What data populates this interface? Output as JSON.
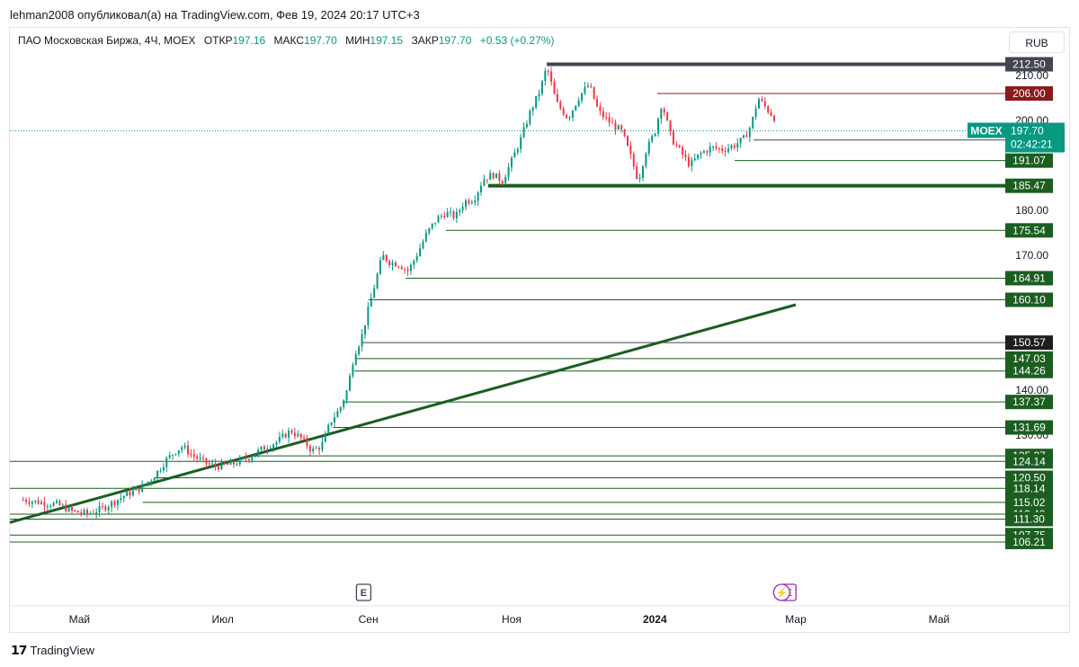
{
  "header": {
    "caption": "lehman2008 опубликовал(а) на TradingView.com, Фев 19, 2024 20:17 UTC+3"
  },
  "legend": {
    "symbol": "ПАО Московская Биржа, 4Ч, MOEX",
    "open_label": "ОТКР",
    "open": "197.16",
    "high_label": "МАКС",
    "high": "197.70",
    "low_label": "МИН",
    "low": "197.15",
    "close_label": "ЗАКР",
    "close": "197.70",
    "change": "+0.53 (+0.27%)"
  },
  "currency_button": "RUB",
  "footer": {
    "brand": "TradingView"
  },
  "chart_data": {
    "type": "candlestick",
    "symbol": "MOEX",
    "timeframe": "4Ч",
    "y_axis": {
      "min": 104,
      "max": 216,
      "ticks": [
        210,
        200,
        180,
        170,
        140,
        130
      ]
    },
    "x_axis": {
      "labels": [
        {
          "label": "Май",
          "date": "2023-05-01"
        },
        {
          "label": "Июл",
          "date": "2023-07-01"
        },
        {
          "label": "Сен",
          "date": "2023-09-01"
        },
        {
          "label": "Ноя",
          "date": "2023-11-01"
        },
        {
          "label": "2024",
          "date": "2024-01-01",
          "bold": true
        },
        {
          "label": "Мар",
          "date": "2024-03-01"
        },
        {
          "label": "Май",
          "date": "2024-05-01"
        }
      ]
    },
    "last_price": {
      "symbol": "MOEX",
      "value": "197.70",
      "countdown": "02:42:21",
      "color": "#089981"
    },
    "price_path": [
      [
        "2023-04-07",
        115.6
      ],
      [
        "2023-04-15",
        115.0
      ],
      [
        "2023-04-22",
        114.5
      ],
      [
        "2023-04-28",
        113.0
      ],
      [
        "2023-05-05",
        112.5
      ],
      [
        "2023-05-12",
        114.0
      ],
      [
        "2023-05-20",
        116.5
      ],
      [
        "2023-05-28",
        118.5
      ],
      [
        "2023-06-02",
        121.0
      ],
      [
        "2023-06-07",
        124.5
      ],
      [
        "2023-06-11",
        126.5
      ],
      [
        "2023-06-14",
        127.5
      ],
      [
        "2023-06-18",
        125.5
      ],
      [
        "2023-06-23",
        124.0
      ],
      [
        "2023-06-28",
        123.0
      ],
      [
        "2023-07-05",
        123.5
      ],
      [
        "2023-07-12",
        125.0
      ],
      [
        "2023-07-18",
        127.0
      ],
      [
        "2023-07-24",
        128.5
      ],
      [
        "2023-07-30",
        131.0
      ],
      [
        "2023-08-04",
        129.0
      ],
      [
        "2023-08-08",
        126.5
      ],
      [
        "2023-08-12",
        127.5
      ],
      [
        "2023-08-16",
        133.0
      ],
      [
        "2023-08-20",
        136.0
      ],
      [
        "2023-08-23",
        140.0
      ],
      [
        "2023-08-26",
        148.0
      ],
      [
        "2023-08-29",
        151.5
      ],
      [
        "2023-09-01",
        158.0
      ],
      [
        "2023-09-04",
        164.0
      ],
      [
        "2023-09-07",
        170.0
      ],
      [
        "2023-09-10",
        168.5
      ],
      [
        "2023-09-14",
        168.0
      ],
      [
        "2023-09-18",
        166.5
      ],
      [
        "2023-09-22",
        170.5
      ],
      [
        "2023-09-26",
        175.0
      ],
      [
        "2023-09-30",
        178.0
      ],
      [
        "2023-10-04",
        179.5
      ],
      [
        "2023-10-08",
        178.5
      ],
      [
        "2023-10-12",
        182.0
      ],
      [
        "2023-10-16",
        182.5
      ],
      [
        "2023-10-20",
        187.0
      ],
      [
        "2023-10-24",
        188.0
      ],
      [
        "2023-10-28",
        186.5
      ],
      [
        "2023-11-01",
        191.0
      ],
      [
        "2023-11-05",
        196.0
      ],
      [
        "2023-11-09",
        202.0
      ],
      [
        "2023-11-13",
        206.5
      ],
      [
        "2023-11-16",
        212.0
      ],
      [
        "2023-11-20",
        204.0
      ],
      [
        "2023-11-25",
        200.5
      ],
      [
        "2023-11-30",
        205.5
      ],
      [
        "2023-12-04",
        208.0
      ],
      [
        "2023-12-08",
        202.0
      ],
      [
        "2023-12-13",
        199.5
      ],
      [
        "2023-12-18",
        197.5
      ],
      [
        "2023-12-22",
        191.5
      ],
      [
        "2023-12-25",
        186.5
      ],
      [
        "2023-12-28",
        193.0
      ],
      [
        "2024-01-01",
        197.5
      ],
      [
        "2024-01-04",
        204.0
      ],
      [
        "2024-01-08",
        196.0
      ],
      [
        "2024-01-12",
        193.0
      ],
      [
        "2024-01-16",
        190.0
      ],
      [
        "2024-01-20",
        192.5
      ],
      [
        "2024-01-25",
        194.0
      ],
      [
        "2024-01-30",
        193.5
      ],
      [
        "2024-02-04",
        194.5
      ],
      [
        "2024-02-08",
        196.0
      ],
      [
        "2024-02-11",
        199.0
      ],
      [
        "2024-02-14",
        205.0
      ],
      [
        "2024-02-17",
        203.0
      ],
      [
        "2024-02-21",
        200.5
      ],
      [
        "2024-02-26",
        198.5
      ],
      [
        "2024-03-01",
        197.7
      ]
    ],
    "horizontal_levels": [
      {
        "value": 212.5,
        "label": "212.50",
        "start": "2023-11-16",
        "color": "#434651",
        "width": 4,
        "label_bg": "#434651"
      },
      {
        "value": 206.0,
        "label": "206.00",
        "start": "2024-01-02",
        "color": "#8b1a1a",
        "width": 1,
        "label_bg": "#8b1a1a"
      },
      {
        "value": 195.66,
        "label": "195.66",
        "start": "2024-02-12",
        "color": "#434651",
        "width": 1,
        "label_bg": "#1e1e1e"
      },
      {
        "value": 191.07,
        "label": "191.07",
        "start": "2024-02-04",
        "color": "#1b5e20",
        "width": 1,
        "label_bg": "#1b5e20"
      },
      {
        "value": 185.47,
        "label": "185.47",
        "start": "2023-10-22",
        "color": "#1b5e20",
        "width": 4,
        "label_bg": "#1b5e20"
      },
      {
        "value": 175.54,
        "label": "175.54",
        "start": "2023-10-04",
        "color": "#1b5e20",
        "width": 1,
        "label_bg": "#1b5e20"
      },
      {
        "value": 164.91,
        "label": "164.91",
        "start": "2023-09-17",
        "color": "#1b5e20",
        "width": 1,
        "label_bg": "#1b5e20"
      },
      {
        "value": 160.1,
        "label": "160.10",
        "start": "2023-09-01",
        "color": "#1b5e20",
        "width": 1,
        "label_bg": "#1b5e20"
      },
      {
        "value": 150.57,
        "label": "150.57",
        "start": "2023-08-29",
        "color": "#434651",
        "width": 1,
        "label_bg": "#1e1e1e"
      },
      {
        "value": 147.03,
        "label": "147.03",
        "start": "2023-08-27",
        "color": "#1b5e20",
        "width": 1,
        "label_bg": "#1b5e20"
      },
      {
        "value": 144.26,
        "label": "144.26",
        "start": "2023-08-26",
        "color": "#1b5e20",
        "width": 1,
        "label_bg": "#1b5e20"
      },
      {
        "value": 137.37,
        "label": "137.37",
        "start": "2023-08-21",
        "color": "#1b5e20",
        "width": 1,
        "label_bg": "#1b5e20"
      },
      {
        "value": 131.69,
        "label": "131.69",
        "start": "2023-08-17",
        "color": "#1b5e20",
        "width": 1,
        "label_bg": "#1b5e20"
      },
      {
        "value": 125.37,
        "label": "125.37",
        "start": "2023-07-12",
        "color": "#1b5e20",
        "width": 1,
        "label_bg": "#1b5e20"
      },
      {
        "value": 124.14,
        "label": "124.14",
        "start": "2023-04-01",
        "color": "#1b5e20",
        "width": 1,
        "label_bg": "#1b5e20"
      },
      {
        "value": 120.5,
        "label": "120.50",
        "start": "2023-06-02",
        "color": "#1b5e20",
        "width": 1,
        "label_bg": "#1b5e20"
      },
      {
        "value": 118.14,
        "label": "118.14",
        "start": "2023-04-01",
        "color": "#1b5e20",
        "width": 1,
        "label_bg": "#1b5e20"
      },
      {
        "value": 115.02,
        "label": "115.02",
        "start": "2023-05-28",
        "color": "#1b5e20",
        "width": 1,
        "label_bg": "#1b5e20"
      },
      {
        "value": 112.4,
        "label": "112.40",
        "start": "2023-04-01",
        "color": "#1b5e20",
        "width": 1,
        "label_bg": "#1b5e20"
      },
      {
        "value": 111.3,
        "label": "111.30",
        "start": "2023-04-01",
        "color": "#1b5e20",
        "width": 1,
        "label_bg": "#1b5e20"
      },
      {
        "value": 107.75,
        "label": "107.75",
        "start": "2023-04-01",
        "color": "#1b5e20",
        "width": 1,
        "label_bg": "#1b5e20"
      },
      {
        "value": 106.21,
        "label": "106.21",
        "start": "2023-04-01",
        "color": "#1b5e20",
        "width": 1,
        "label_bg": "#1b5e20"
      }
    ],
    "trendline": {
      "from": [
        "2023-04-01",
        110.5
      ],
      "to": [
        "2024-03-01",
        159.0
      ],
      "color": "#1b5e20"
    },
    "event_markers": [
      {
        "date": "2023-08-30",
        "text": "E",
        "type": "earnings",
        "color": "#434651"
      },
      {
        "date": "2024-02-27",
        "text": "E",
        "type": "earnings",
        "color": "#9c27b0"
      },
      {
        "date": "2024-02-24",
        "text": "⚡",
        "type": "dividend",
        "color": "#9c27b0"
      }
    ],
    "colors": {
      "up": "#089981",
      "down": "#f23645",
      "grid": "#f0f3fa",
      "text": "#131722"
    }
  }
}
